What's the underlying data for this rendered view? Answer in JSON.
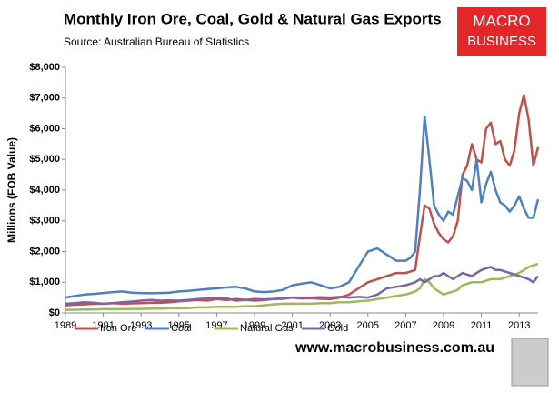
{
  "chart_data": {
    "type": "line",
    "title": "Monthly Iron Ore, Coal, Gold & Natural Gas Exports",
    "subtitle": "Source:  Australian Bureau of Statistics",
    "y_label": "Millions (FOB Value)",
    "logo_text": [
      "MACRO",
      "BUSINESS"
    ],
    "website": "www.macrobusiness.com.au",
    "x": [
      1989,
      1989.5,
      1990,
      1990.5,
      1991,
      1991.5,
      1992,
      1992.5,
      1993,
      1993.5,
      1994,
      1994.5,
      1995,
      1995.5,
      1996,
      1996.5,
      1997,
      1997.5,
      1998,
      1998.5,
      1999,
      1999.5,
      2000,
      2000.5,
      2001,
      2001.5,
      2002,
      2002.5,
      2003,
      2003.5,
      2004,
      2004.5,
      2005,
      2005.5,
      2006,
      2006.5,
      2007,
      2007.25,
      2007.5,
      2007.75,
      2008,
      2008.25,
      2008.5,
      2008.75,
      2009,
      2009.25,
      2009.5,
      2009.75,
      2010,
      2010.25,
      2010.5,
      2010.75,
      2011,
      2011.25,
      2011.5,
      2011.75,
      2012,
      2012.25,
      2012.5,
      2012.75,
      2013,
      2013.25,
      2013.5,
      2013.75,
      2014
    ],
    "series": [
      {
        "name": "Iron Ore",
        "color": "#c0504d",
        "values": [
          250,
          270,
          280,
          300,
          300,
          320,
          300,
          310,
          320,
          330,
          330,
          350,
          380,
          400,
          420,
          400,
          450,
          420,
          450,
          430,
          400,
          420,
          450,
          480,
          500,
          470,
          480,
          460,
          450,
          500,
          600,
          800,
          1000,
          1100,
          1200,
          1300,
          1300,
          1350,
          1400,
          2500,
          3500,
          3400,
          2900,
          2600,
          2400,
          2300,
          2500,
          3000,
          4500,
          4800,
          5500,
          5000,
          4900,
          6000,
          6200,
          5500,
          5600,
          5000,
          4800,
          5300,
          6500,
          7100,
          6300,
          4800,
          5400
        ]
      },
      {
        "name": "Coal",
        "color": "#4f81bd",
        "values": [
          500,
          550,
          600,
          620,
          650,
          680,
          700,
          660,
          650,
          640,
          650,
          660,
          700,
          720,
          750,
          780,
          800,
          830,
          850,
          800,
          700,
          680,
          700,
          750,
          900,
          950,
          1000,
          900,
          800,
          850,
          1000,
          1500,
          2000,
          2100,
          1900,
          1700,
          1700,
          1800,
          2000,
          4000,
          6400,
          5000,
          3500,
          3200,
          3000,
          3300,
          3200,
          3800,
          4400,
          4300,
          4000,
          5000,
          3600,
          4200,
          4600,
          4000,
          3600,
          3500,
          3300,
          3500,
          3800,
          3400,
          3100,
          3100,
          3700
        ]
      },
      {
        "name": "Natural Gas",
        "color": "#9bbb59",
        "values": [
          100,
          100,
          110,
          110,
          120,
          120,
          120,
          130,
          130,
          140,
          140,
          150,
          150,
          160,
          180,
          180,
          200,
          200,
          200,
          220,
          220,
          250,
          280,
          300,
          300,
          300,
          300,
          320,
          320,
          350,
          350,
          380,
          400,
          450,
          500,
          550,
          600,
          650,
          700,
          800,
          1100,
          1000,
          800,
          700,
          600,
          650,
          700,
          750,
          900,
          950,
          1000,
          1000,
          1000,
          1050,
          1100,
          1100,
          1100,
          1150,
          1200,
          1250,
          1300,
          1400,
          1500,
          1550,
          1600
        ]
      },
      {
        "name": "Gold",
        "color": "#8064a2",
        "values": [
          300,
          320,
          350,
          330,
          300,
          320,
          350,
          370,
          400,
          420,
          400,
          410,
          400,
          420,
          450,
          470,
          500,
          480,
          400,
          420,
          450,
          440,
          450,
          460,
          500,
          500,
          500,
          510,
          500,
          520,
          500,
          520,
          500,
          600,
          800,
          850,
          900,
          950,
          1000,
          1100,
          1000,
          1100,
          1200,
          1200,
          1300,
          1200,
          1100,
          1200,
          1300,
          1250,
          1200,
          1300,
          1400,
          1450,
          1500,
          1400,
          1400,
          1350,
          1300,
          1250,
          1200,
          1150,
          1100,
          1000,
          1200
        ]
      }
    ],
    "xlim": [
      1989,
      2014
    ],
    "xticks": [
      1989,
      1991,
      1993,
      1995,
      1997,
      1999,
      2001,
      2003,
      2005,
      2007,
      2009,
      2011,
      2013
    ],
    "ylim": [
      0,
      8000
    ],
    "yticks": [
      {
        "value": 0,
        "label": "$0"
      },
      {
        "value": 1000,
        "label": "$1,000"
      },
      {
        "value": 2000,
        "label": "$2,000"
      },
      {
        "value": 3000,
        "label": "$3,000"
      },
      {
        "value": 4000,
        "label": "$4,000"
      },
      {
        "value": 5000,
        "label": "$5,000"
      },
      {
        "value": 6000,
        "label": "$6,000"
      },
      {
        "value": 7000,
        "label": "$7,000"
      },
      {
        "value": 8000,
        "label": "$8,000"
      }
    ],
    "grid": false,
    "legend": "bottom"
  }
}
